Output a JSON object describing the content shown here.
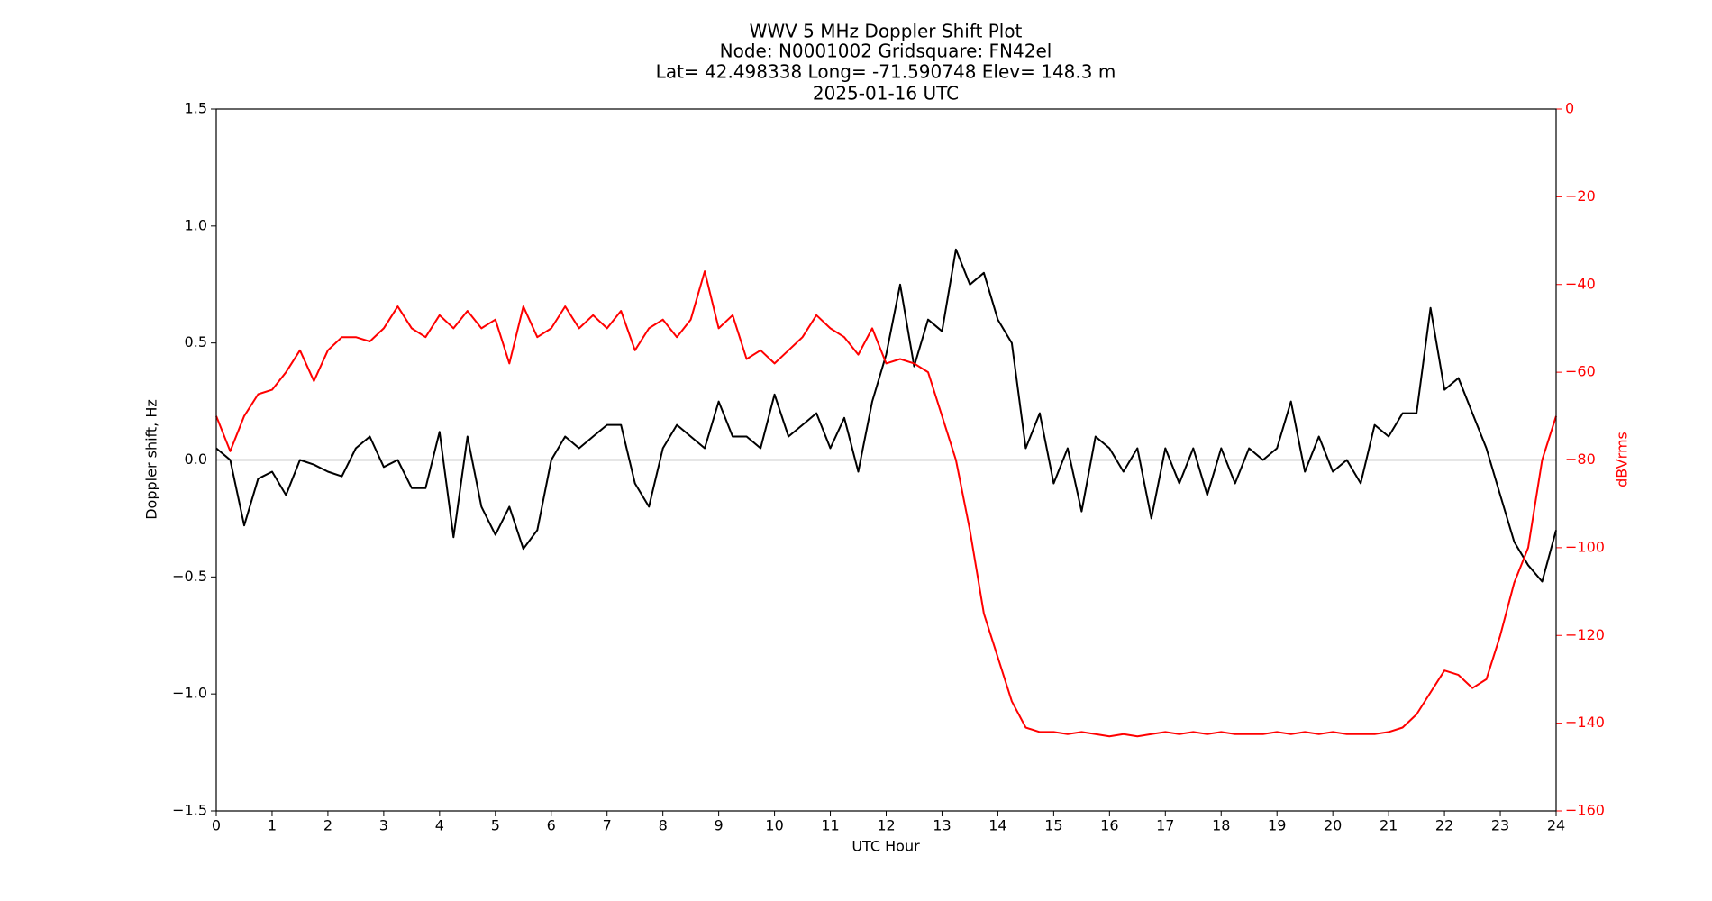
{
  "chart_data": {
    "type": "line",
    "title": [
      "WWV 5 MHz Doppler Shift Plot",
      "Node:  N0001002     Gridsquare:  FN42el",
      "Lat= 42.498338    Long= -71.590748    Elev= 148.3 m",
      "2025-01-16  UTC"
    ],
    "xlabel": "UTC Hour",
    "ylabel": "Doppler shift, Hz",
    "y2label": "dBVrms",
    "y2color": "#ff0000",
    "xlim": [
      0,
      24
    ],
    "xticks": [
      0,
      1,
      2,
      3,
      4,
      5,
      6,
      7,
      8,
      9,
      10,
      11,
      12,
      13,
      14,
      15,
      16,
      17,
      18,
      19,
      20,
      21,
      22,
      23,
      24
    ],
    "ylim": [
      -1.5,
      1.5
    ],
    "yticks": [
      {
        "value": -1.5,
        "label": "−1.5"
      },
      {
        "value": -1.0,
        "label": "−1.0"
      },
      {
        "value": -0.5,
        "label": "−0.5"
      },
      {
        "value": 0,
        "label": "0.0"
      },
      0.5,
      {
        "value": 1.0,
        "label": "1.0"
      },
      1.5
    ],
    "y2lim": [
      -160,
      0
    ],
    "y2ticks": [
      {
        "value": -160,
        "label": "−160"
      },
      {
        "value": -140,
        "label": "−140"
      },
      {
        "value": -120,
        "label": "−120"
      },
      {
        "value": -100,
        "label": "−100"
      },
      {
        "value": -80,
        "label": "−80"
      },
      {
        "value": -60,
        "label": "−60"
      },
      {
        "value": -40,
        "label": "−40"
      },
      {
        "value": -20,
        "label": "−20"
      },
      0
    ],
    "reference_line": 0,
    "reference_color": "#999999",
    "x": [
      0,
      0.25,
      0.5,
      0.75,
      1,
      1.25,
      1.5,
      1.75,
      2,
      2.25,
      2.5,
      2.75,
      3,
      3.25,
      3.5,
      3.75,
      4,
      4.25,
      4.5,
      4.75,
      5,
      5.25,
      5.5,
      5.75,
      6,
      6.25,
      6.5,
      6.75,
      7,
      7.25,
      7.5,
      7.75,
      8,
      8.25,
      8.5,
      8.75,
      9,
      9.25,
      9.5,
      9.75,
      10,
      10.25,
      10.5,
      10.75,
      11,
      11.25,
      11.5,
      11.75,
      12,
      12.25,
      12.5,
      12.75,
      13,
      13.25,
      13.5,
      13.75,
      14,
      14.25,
      14.5,
      14.75,
      15,
      15.25,
      15.5,
      15.75,
      16,
      16.25,
      16.5,
      16.75,
      17,
      17.25,
      17.5,
      17.75,
      18,
      18.25,
      18.5,
      18.75,
      19,
      19.25,
      19.5,
      19.75,
      20,
      20.25,
      20.5,
      20.75,
      21,
      21.25,
      21.5,
      21.75,
      22,
      22.25,
      22.5,
      22.75,
      23,
      23.25,
      23.5,
      23.75,
      24
    ],
    "series": [
      {
        "color": "#000000",
        "values": [
          0.05,
          0.0,
          -0.28,
          -0.08,
          -0.05,
          -0.15,
          0.0,
          -0.02,
          -0.05,
          -0.07,
          0.05,
          0.1,
          -0.03,
          0.0,
          -0.12,
          -0.12,
          0.12,
          -0.33,
          0.1,
          -0.2,
          -0.32,
          -0.2,
          -0.38,
          -0.3,
          0.0,
          0.1,
          0.05,
          0.1,
          0.15,
          0.15,
          -0.1,
          -0.2,
          0.05,
          0.15,
          0.1,
          0.05,
          0.25,
          0.1,
          0.1,
          0.05,
          0.28,
          0.1,
          0.15,
          0.2,
          0.05,
          0.18,
          -0.05,
          0.25,
          0.45,
          0.75,
          0.4,
          0.6,
          0.55,
          0.9,
          0.75,
          0.8,
          0.6,
          0.5,
          0.05,
          0.2,
          -0.1,
          0.05,
          -0.22,
          0.1,
          0.05,
          -0.05,
          0.05,
          -0.25,
          0.05,
          -0.1,
          0.05,
          -0.15,
          0.05,
          -0.1,
          0.05,
          0.0,
          0.05,
          0.25,
          -0.05,
          0.1,
          -0.05,
          0.0,
          -0.1,
          0.15,
          0.1,
          0.2,
          0.2,
          0.65,
          0.3,
          0.35,
          0.2,
          0.05,
          -0.15,
          -0.35,
          -0.45,
          -0.52,
          -0.3
        ]
      },
      {
        "color": "#ff0000",
        "axis": "y2",
        "values": [
          -70,
          -78,
          -70,
          -65,
          -64,
          -60,
          -55,
          -62,
          -55,
          -52,
          -52,
          -53,
          -50,
          -45,
          -50,
          -52,
          -47,
          -50,
          -46,
          -50,
          -48,
          -58,
          -45,
          -52,
          -50,
          -45,
          -50,
          -47,
          -50,
          -46,
          -55,
          -50,
          -48,
          -52,
          -48,
          -37,
          -50,
          -47,
          -57,
          -55,
          -58,
          -55,
          -52,
          -47,
          -50,
          -52,
          -56,
          -50,
          -58,
          -57,
          -58,
          -60,
          -70,
          -80,
          -96,
          -115,
          -125,
          -135,
          -141,
          -142,
          -142,
          -142.5,
          -142,
          -142.5,
          -143,
          -142.5,
          -143,
          -142.5,
          -142,
          -142.5,
          -142,
          -142.5,
          -142,
          -142.5,
          -142.5,
          -142.5,
          -142,
          -142.5,
          -142,
          -142.5,
          -142,
          -142.5,
          -142.5,
          -142.5,
          -142,
          -141,
          -138,
          -133,
          -128,
          -129,
          -132,
          -130,
          -120,
          -108,
          -100,
          -80,
          -70
        ]
      }
    ]
  }
}
